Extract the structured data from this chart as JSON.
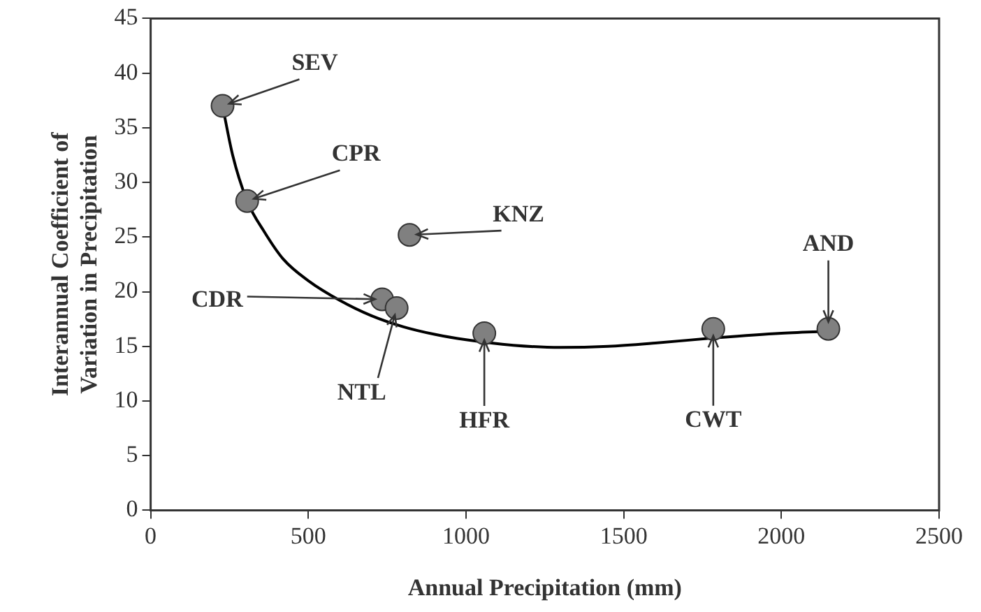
{
  "chart_data": {
    "type": "scatter",
    "xlabel": "Annual Precipitation (mm)",
    "ylabel": "Interannual Coefficient of\nVariation in Precipitation",
    "xlim": [
      0,
      2500
    ],
    "xticks": [
      0,
      500,
      1000,
      1500,
      2000,
      2500
    ],
    "ylim": [
      0,
      45
    ],
    "yticks": [
      0,
      5,
      10,
      15,
      20,
      25,
      30,
      35,
      40,
      45
    ],
    "grid": false,
    "legend": false,
    "series": [
      {
        "color": "#808080",
        "marker": "circle",
        "x": [
          228,
          306,
          821,
          734,
          780,
          1058,
          1784,
          2149
        ],
        "values": [
          37.0,
          28.3,
          25.2,
          19.3,
          18.5,
          16.2,
          16.6,
          16.6
        ]
      },
      {
        "type": "line",
        "color": "#000000",
        "marker": "none",
        "x": [
          228,
          260,
          306,
          360,
          420,
          500,
          600,
          700,
          800,
          900,
          1000,
          1150,
          1300,
          1450,
          1600,
          1800,
          2000,
          2180
        ],
        "values": [
          37,
          32.5,
          28.3,
          25.5,
          23,
          21,
          19.2,
          17.8,
          16.8,
          16.1,
          15.6,
          15.1,
          14.9,
          15,
          15.3,
          15.8,
          16.2,
          16.4
        ]
      }
    ],
    "annotations": [
      {
        "text": "SEV",
        "x": 228,
        "y": 37.0
      },
      {
        "text": "CPR",
        "x": 306,
        "y": 28.3
      },
      {
        "text": "KNZ",
        "x": 821,
        "y": 25.2
      },
      {
        "text": "CDR",
        "x": 734,
        "y": 19.3
      },
      {
        "text": "NTL",
        "x": 780,
        "y": 18.5
      },
      {
        "text": "HFR",
        "x": 1058,
        "y": 16.2
      },
      {
        "text": "CWT",
        "x": 1784,
        "y": 16.6
      },
      {
        "text": "AND",
        "x": 2149,
        "y": 16.6
      }
    ]
  }
}
